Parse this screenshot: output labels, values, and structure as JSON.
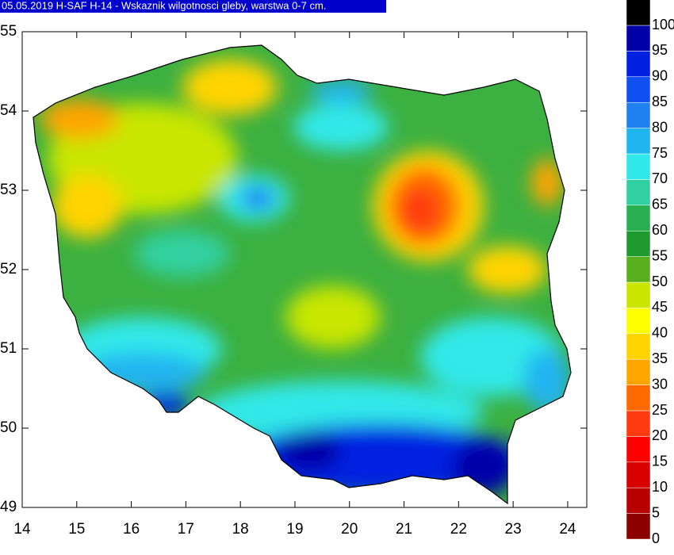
{
  "header": {
    "title": "05.05.2019 H-SAF H-14 - Wskaznik wilgotnosci gleby, warstwa 0-7 cm."
  },
  "map": {
    "xlim": [
      14,
      24.35
    ],
    "ylim": [
      49,
      55
    ],
    "xticks": [
      14,
      15,
      16,
      17,
      18,
      19,
      20,
      21,
      22,
      23,
      24
    ],
    "yticks": [
      49,
      50,
      51,
      52,
      53,
      54,
      55
    ]
  },
  "legend": {
    "levels": [
      0,
      5,
      10,
      15,
      20,
      25,
      30,
      35,
      40,
      45,
      50,
      55,
      60,
      65,
      70,
      75,
      80,
      85,
      90,
      95,
      100
    ],
    "colors": [
      "#8c0000",
      "#b80000",
      "#d80000",
      "#ff0000",
      "#ff3a10",
      "#ff6a00",
      "#ffa500",
      "#ffd400",
      "#ffff00",
      "#c8e600",
      "#58b020",
      "#1e9a2e",
      "#28b050",
      "#30d0a0",
      "#30e8e8",
      "#20b4f0",
      "#2080f0",
      "#1050f0",
      "#0020e0",
      "#0000a8",
      "#000000"
    ]
  }
}
